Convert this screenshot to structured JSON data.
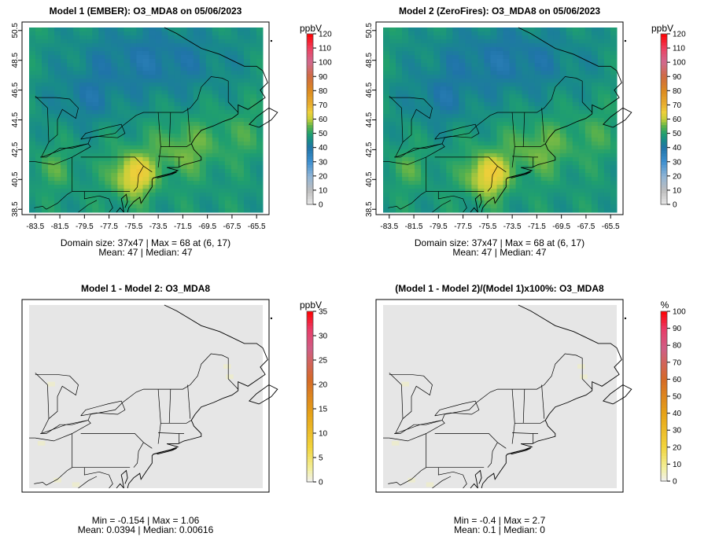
{
  "chart_data": [
    {
      "type": "heatmap",
      "title": "Model 1 (EMBER): O3_MDA8 on 05/06/2023",
      "xticks": [
        "-83.5",
        "-81.5",
        "-79.5",
        "-77.5",
        "-75.5",
        "-73.5",
        "-71.5",
        "-69.5",
        "-67.5",
        "-65.5"
      ],
      "yticks": [
        "38.5",
        "40.5",
        "42.5",
        "44.5",
        "46.5",
        "48.5",
        "50.5"
      ],
      "xlim": [
        -84.0,
        -65.0
      ],
      "ylim": [
        38.3,
        50.7
      ],
      "colorbar": {
        "unit": "ppbV",
        "min": 0,
        "max": 120,
        "ticks": [
          "0",
          "10",
          "20",
          "30",
          "40",
          "50",
          "60",
          "70",
          "80",
          "90",
          "100",
          "110",
          "120"
        ]
      },
      "stats_line1": "Domain size: 37x47 | Max = 68 at (6, 17)",
      "stats_line2": "Mean: 47 |  Median: 47",
      "field": "concentration"
    },
    {
      "type": "heatmap",
      "title": "Model 2 (ZeroFires): O3_MDA8 on 05/06/2023",
      "xticks": [
        "-83.5",
        "-81.5",
        "-79.5",
        "-77.5",
        "-75.5",
        "-73.5",
        "-71.5",
        "-69.5",
        "-67.5",
        "-65.5"
      ],
      "yticks": [
        "38.5",
        "40.5",
        "42.5",
        "44.5",
        "46.5",
        "48.5",
        "50.5"
      ],
      "xlim": [
        -84.0,
        -65.0
      ],
      "ylim": [
        38.3,
        50.7
      ],
      "colorbar": {
        "unit": "ppbV",
        "min": 0,
        "max": 120,
        "ticks": [
          "0",
          "10",
          "20",
          "30",
          "40",
          "50",
          "60",
          "70",
          "80",
          "90",
          "100",
          "110",
          "120"
        ]
      },
      "stats_line1": "Domain size: 37x47 | Max = 68 at (6, 17)",
      "stats_line2": "Mean: 47 |  Median: 47",
      "field": "concentration"
    },
    {
      "type": "heatmap",
      "title": "Model 1 - Model 2: O3_MDA8",
      "xticks": [],
      "yticks": [],
      "colorbar": {
        "unit": "ppbV",
        "min": 0,
        "max": 35,
        "ticks": [
          "0",
          "5",
          "10",
          "15",
          "20",
          "25",
          "30",
          "35"
        ]
      },
      "stats_line1": "Min = -0.154 | Max = 1.06",
      "stats_line2": "Mean: 0.0394 |  Median: 0.00616",
      "field": "difference"
    },
    {
      "type": "heatmap",
      "title": "(Model 1 - Model 2)/(Model 1)x100%: O3_MDA8",
      "xticks": [],
      "yticks": [],
      "colorbar": {
        "unit": "%",
        "min": 0,
        "max": 100,
        "ticks": [
          "0",
          "10",
          "20",
          "30",
          "40",
          "50",
          "60",
          "70",
          "80",
          "90",
          "100"
        ]
      },
      "stats_line1": "Min = -0.4 | Max = 2.7",
      "stats_line2": "Mean: 0.1 |  Median: 0",
      "field": "percent"
    }
  ]
}
